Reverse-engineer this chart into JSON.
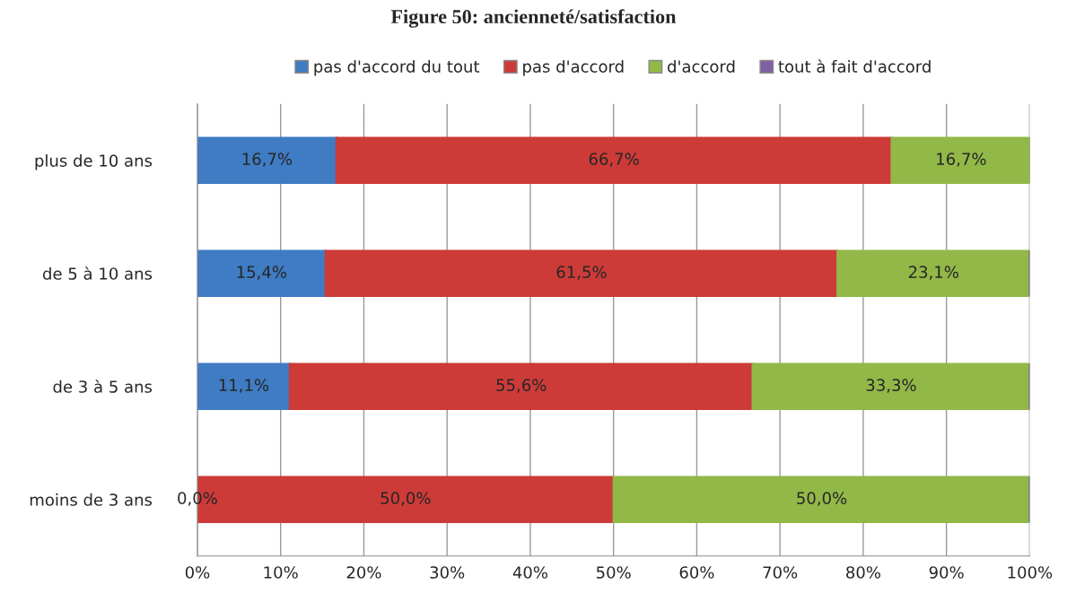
{
  "chart_data": {
    "type": "bar",
    "orientation": "horizontal",
    "stacked": true,
    "title": "Figure 50: ancienneté/satisfaction",
    "categories": [
      "plus de 10 ans",
      "de 5 à 10 ans",
      "de 3 à 5 ans",
      "moins de 3 ans"
    ],
    "series": [
      {
        "name": "pas d'accord du tout",
        "color": "#3f7cc4",
        "values": [
          16.7,
          15.4,
          11.1,
          0.0
        ],
        "value_labels": [
          "16,7%",
          "15,4%",
          "11,1%",
          "0,0%"
        ]
      },
      {
        "name": "pas d'accord",
        "color": "#cc3b38",
        "values": [
          66.7,
          61.5,
          55.6,
          50.0
        ],
        "value_labels": [
          "66,7%",
          "61,5%",
          "55,6%",
          "50,0%"
        ]
      },
      {
        "name": "d'accord",
        "color": "#92b848",
        "values": [
          16.7,
          23.1,
          33.3,
          50.0
        ],
        "value_labels": [
          "16,7%",
          "23,1%",
          "33,3%",
          "50,0%"
        ]
      },
      {
        "name": "tout à fait d'accord",
        "color": "#7f5fa5",
        "values": [
          0,
          0,
          0,
          0
        ],
        "value_labels": [
          null,
          null,
          null,
          null
        ]
      }
    ],
    "xlim": [
      0,
      100
    ],
    "xticks": [
      {
        "value": 0,
        "label": "0%"
      },
      {
        "value": 10,
        "label": "10%"
      },
      {
        "value": 20,
        "label": "20%"
      },
      {
        "value": 30,
        "label": "30%"
      },
      {
        "value": 40,
        "label": "40%"
      },
      {
        "value": 50,
        "label": "50%"
      },
      {
        "value": 60,
        "label": "60%"
      },
      {
        "value": 70,
        "label": "70%"
      },
      {
        "value": 80,
        "label": "80%"
      },
      {
        "value": 90,
        "label": "90%"
      },
      {
        "value": 100,
        "label": "100%"
      }
    ],
    "grid": "x",
    "legend": "top"
  }
}
